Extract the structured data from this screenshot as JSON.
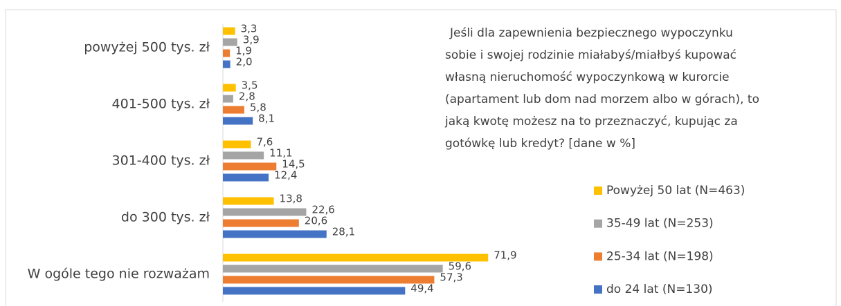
{
  "chart_data": {
    "type": "hbar",
    "annotation": [
      "Jeśli dla zapewnienia bezpiecznego wypoczynku",
      "sobie i swojej rodzinie miałabyś/miałbyś kupować",
      "własną nieruchomość wypoczynkową w kurorcie",
      "(apartament lub dom nad morzem albo w górach), to",
      "jaką kwotę możesz na to przeznaczyć, kupując za",
      "gotówkę lub kredyt? [dane w %]"
    ],
    "categories": [
      "powyżej 500 tys. zł",
      "401-500 tys. zł",
      "301-400 tys. zł",
      "do 300 tys. zł",
      "W ogóle tego nie rozważam"
    ],
    "series": [
      {
        "name": "Powyżej 50 lat (N=463)",
        "color": "#ffc000",
        "values": [
          3.3,
          3.5,
          7.6,
          13.8,
          71.9
        ],
        "value_labels": [
          "3,3",
          "3,5",
          "7,6",
          "13,8",
          "71,9"
        ]
      },
      {
        "name": "35-49 lat (N=253)",
        "color": "#a5a5a5",
        "values": [
          3.9,
          2.8,
          11.1,
          22.6,
          59.6
        ],
        "value_labels": [
          "3,9",
          "2,8",
          "11,1",
          "22,6",
          "59,6"
        ]
      },
      {
        "name": "25-34 lat (N=198)",
        "color": "#ed7d31",
        "values": [
          1.9,
          5.8,
          14.5,
          20.6,
          57.3
        ],
        "value_labels": [
          "1,9",
          "5,8",
          "14,5",
          "20,6",
          "57,3"
        ]
      },
      {
        "name": "do 24 lat (N=130)",
        "color": "#4472c4",
        "values": [
          2.0,
          8.1,
          12.4,
          28.1,
          49.4
        ],
        "value_labels": [
          "2,0",
          "8,1",
          "12,4",
          "28,1",
          "49,4"
        ]
      }
    ],
    "legend": "right"
  }
}
